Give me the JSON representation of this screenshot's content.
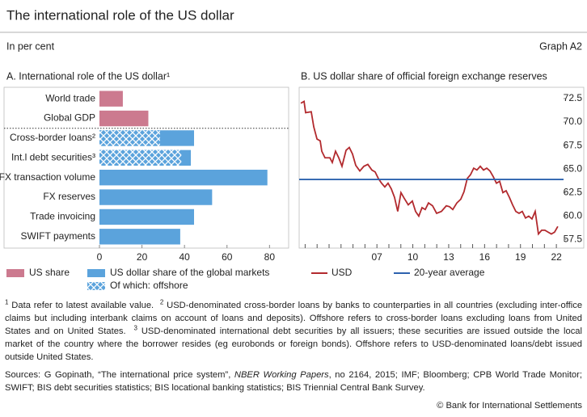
{
  "header": {
    "title": "The international role of the US dollar",
    "subtitle": "In per cent",
    "graph_id": "Graph A2"
  },
  "chart_data": [
    {
      "type": "hbar",
      "title": "A. International role of the US dollar¹",
      "categories": [
        "World trade",
        "Global GDP",
        "Cross-border loans²",
        "Int.l debt securities³",
        "FX transaction volume",
        "FX reserves",
        "Trade invoicing",
        "SWIFT payments"
      ],
      "series": [
        {
          "name": "US share",
          "color": "#cc7a8f",
          "values": [
            11,
            23,
            null,
            null,
            null,
            null,
            null,
            null
          ]
        },
        {
          "name": "US dollar share of the global markets",
          "color": "#5ba3dc",
          "values": [
            null,
            null,
            44.5,
            43,
            79,
            53,
            44.5,
            38
          ]
        },
        {
          "name": "Of which: offshore",
          "color": "#5ba3dc",
          "hatch": true,
          "values": [
            null,
            null,
            28.5,
            38.5,
            null,
            null,
            null,
            null
          ]
        }
      ],
      "xlim": [
        0,
        89
      ],
      "xticks": [
        0,
        20,
        40,
        60,
        80
      ]
    },
    {
      "type": "line",
      "title": "B. US dollar share of official foreign exchange reserves",
      "x": [
        2000.64,
        2000.91,
        2001.04,
        2001.51,
        2001.72,
        2001.99,
        2002.26,
        2002.39,
        2002.66,
        2003.07,
        2003.27,
        2003.54,
        2003.81,
        2004.08,
        2004.42,
        2004.69,
        2004.96,
        2005.23,
        2005.57,
        2005.91,
        2006.24,
        2006.58,
        2006.85,
        2007.12,
        2007.39,
        2007.66,
        2007.93,
        2008.2,
        2008.47,
        2008.74,
        2009.01,
        2009.28,
        2009.62,
        2009.96,
        2010.23,
        2010.5,
        2010.77,
        2011.04,
        2011.31,
        2011.65,
        2011.99,
        2012.39,
        2012.8,
        2013.07,
        2013.34,
        2013.68,
        2014.01,
        2014.28,
        2014.55,
        2014.82,
        2015.09,
        2015.36,
        2015.64,
        2015.91,
        2016.18,
        2016.45,
        2016.72,
        2016.99,
        2017.26,
        2017.53,
        2017.8,
        2018.07,
        2018.34,
        2018.61,
        2018.88,
        2019.15,
        2019.42,
        2019.69,
        2019.96,
        2020.23,
        2020.5,
        2020.77,
        2021.04,
        2021.31,
        2021.58,
        2021.85,
        2022.12
      ],
      "series": [
        {
          "name": "USD",
          "color": "#b22a2e",
          "values": [
            72.0,
            72.2,
            71.0,
            71.1,
            69.5,
            68.2,
            68.0,
            66.9,
            66.2,
            66.2,
            65.7,
            66.9,
            66.2,
            65.3,
            67.0,
            67.3,
            66.6,
            65.4,
            64.8,
            65.3,
            65.5,
            64.9,
            64.7,
            64.0,
            63.5,
            63.1,
            63.5,
            62.9,
            62.0,
            60.5,
            62.5,
            61.9,
            61.2,
            61.6,
            60.5,
            60.0,
            60.9,
            60.7,
            61.4,
            61.1,
            60.3,
            60.5,
            61.1,
            61.0,
            60.7,
            61.4,
            61.8,
            62.6,
            64.0,
            64.4,
            65.1,
            64.9,
            65.3,
            64.9,
            65.1,
            64.8,
            64.2,
            63.5,
            63.7,
            62.5,
            62.7,
            62.0,
            61.2,
            60.5,
            60.3,
            60.5,
            59.8,
            60.0,
            59.7,
            60.5,
            58.1,
            58.5,
            58.5,
            58.3,
            58.1,
            58.3,
            58.9
          ]
        },
        {
          "name": "20-year average",
          "color": "#2d62ae",
          "x": [
            2000.5,
            2022.6
          ],
          "values": [
            63.9,
            63.9
          ]
        }
      ],
      "xlim": [
        2000.5,
        2022.6
      ],
      "xticks": [
        {
          "value": 2007,
          "label": "07"
        },
        {
          "value": 2010,
          "label": "10"
        },
        {
          "value": 2013,
          "label": "13"
        },
        {
          "value": 2016,
          "label": "16"
        },
        {
          "value": 2019,
          "label": "19"
        },
        {
          "value": 2022,
          "label": "22"
        }
      ],
      "xminorticks": [
        2001,
        2002,
        2003,
        2004,
        2005,
        2006,
        2008,
        2009,
        2011,
        2012,
        2014,
        2015,
        2017,
        2018,
        2020,
        2021
      ],
      "ylim": [
        56.6,
        73.7
      ],
      "yticks": [
        57.5,
        {
          "value": 60,
          "label": "60.0"
        },
        62.5,
        {
          "value": 65,
          "label": "65.0"
        },
        67.5,
        {
          "value": 70,
          "label": "70.0"
        },
        72.5
      ],
      "y_axis_side": "right"
    }
  ],
  "footnotes": [
    {
      "mark": "1",
      "text": "Data refer to latest available value."
    },
    {
      "mark": "2",
      "text": "USD-denominated cross-border loans by banks to counterparties in all countries (excluding inter-office claims but including interbank claims on account of loans and deposits). Offshore refers to cross-border loans excluding loans from United States and on United States."
    },
    {
      "mark": "3",
      "text": "USD-denominated international debt securities by all issuers; these securities are issued outside the local market of the country where the borrower resides (eg eurobonds or foreign bonds). Offshore refers to USD-denominated loans/debt issued outside United States."
    }
  ],
  "sources": {
    "lead": "Sources: G Gopinath, “The international price system”, ",
    "italic": "NBER Working Papers",
    "rest": ", no 2164, 2015; IMF; Bloomberg; CPB World Trade Monitor; SWIFT; BIS debt securities statistics; BIS locational banking statistics; BIS Triennial Central Bank Survey."
  },
  "copyright": "© Bank for International Settlements"
}
